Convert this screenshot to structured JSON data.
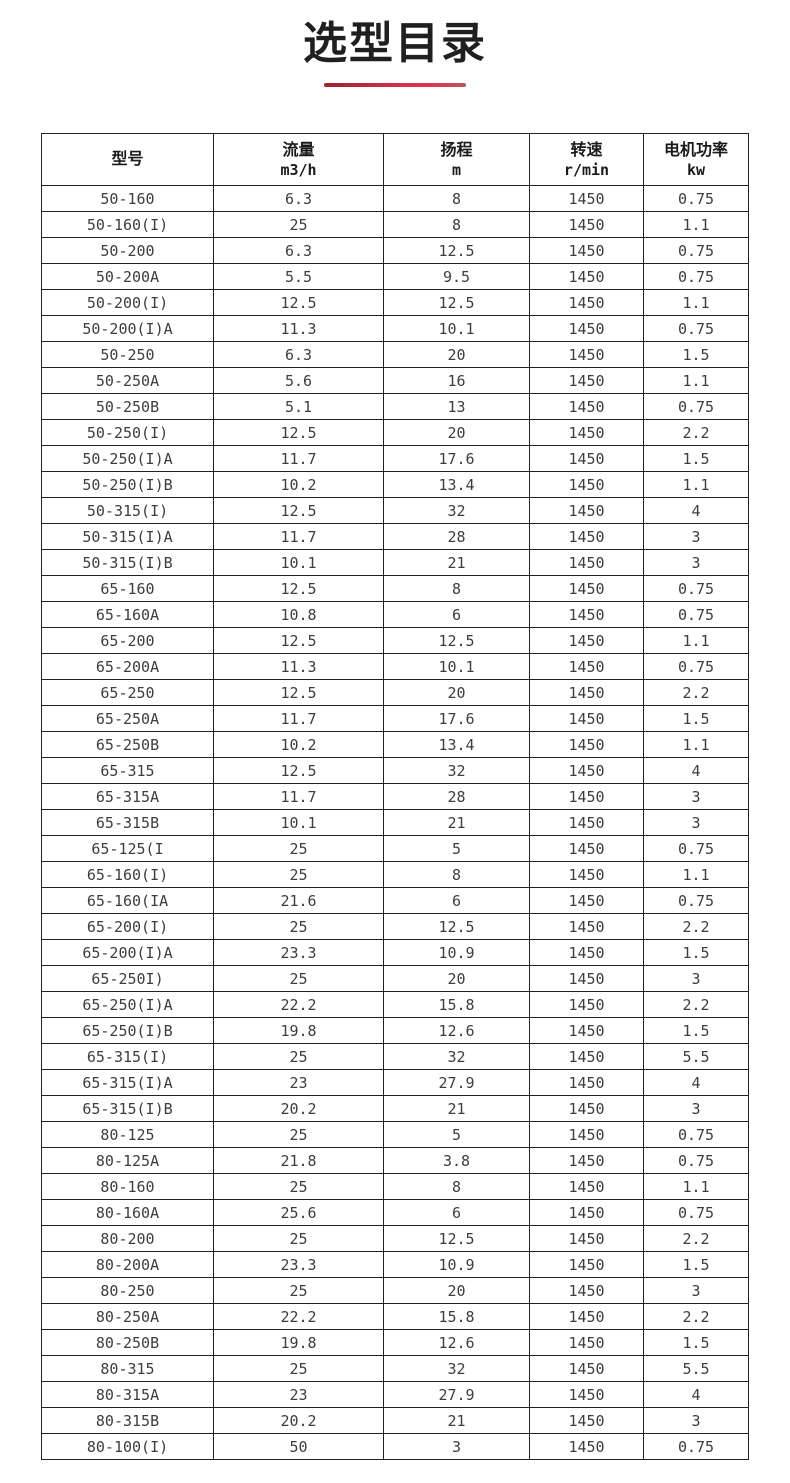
{
  "page": {
    "title": "选型目录",
    "accent_color": "#d8314a"
  },
  "table": {
    "columns": [
      {
        "label": "型号",
        "unit": ""
      },
      {
        "label": "流量",
        "unit": "m3/h"
      },
      {
        "label": "扬程",
        "unit": "m"
      },
      {
        "label": "转速",
        "unit": "r/min"
      },
      {
        "label": "电机功率",
        "unit": "kw"
      }
    ],
    "rows": [
      [
        "50-160",
        "6.3",
        "8",
        "1450",
        "0.75"
      ],
      [
        "50-160(I)",
        "25",
        "8",
        "1450",
        "1.1"
      ],
      [
        "50-200",
        "6.3",
        "12.5",
        "1450",
        "0.75"
      ],
      [
        "50-200A",
        "5.5",
        "9.5",
        "1450",
        "0.75"
      ],
      [
        "50-200(I)",
        "12.5",
        "12.5",
        "1450",
        "1.1"
      ],
      [
        "50-200(I)A",
        "11.3",
        "10.1",
        "1450",
        "0.75"
      ],
      [
        "50-250",
        "6.3",
        "20",
        "1450",
        "1.5"
      ],
      [
        "50-250A",
        "5.6",
        "16",
        "1450",
        "1.1"
      ],
      [
        "50-250B",
        "5.1",
        "13",
        "1450",
        "0.75"
      ],
      [
        "50-250(I)",
        "12.5",
        "20",
        "1450",
        "2.2"
      ],
      [
        "50-250(I)A",
        "11.7",
        "17.6",
        "1450",
        "1.5"
      ],
      [
        "50-250(I)B",
        "10.2",
        "13.4",
        "1450",
        "1.1"
      ],
      [
        "50-315(I)",
        "12.5",
        "32",
        "1450",
        "4"
      ],
      [
        "50-315(I)A",
        "11.7",
        "28",
        "1450",
        "3"
      ],
      [
        "50-315(I)B",
        "10.1",
        "21",
        "1450",
        "3"
      ],
      [
        "65-160",
        "12.5",
        "8",
        "1450",
        "0.75"
      ],
      [
        "65-160A",
        "10.8",
        "6",
        "1450",
        "0.75"
      ],
      [
        "65-200",
        "12.5",
        "12.5",
        "1450",
        "1.1"
      ],
      [
        "65-200A",
        "11.3",
        "10.1",
        "1450",
        "0.75"
      ],
      [
        "65-250",
        "12.5",
        "20",
        "1450",
        "2.2"
      ],
      [
        "65-250A",
        "11.7",
        "17.6",
        "1450",
        "1.5"
      ],
      [
        "65-250B",
        "10.2",
        "13.4",
        "1450",
        "1.1"
      ],
      [
        "65-315",
        "12.5",
        "32",
        "1450",
        "4"
      ],
      [
        "65-315A",
        "11.7",
        "28",
        "1450",
        "3"
      ],
      [
        "65-315B",
        "10.1",
        "21",
        "1450",
        "3"
      ],
      [
        "65-125(I",
        "25",
        "5",
        "1450",
        "0.75"
      ],
      [
        "65-160(I)",
        "25",
        "8",
        "1450",
        "1.1"
      ],
      [
        "65-160(IA",
        "21.6",
        "6",
        "1450",
        "0.75"
      ],
      [
        "65-200(I)",
        "25",
        "12.5",
        "1450",
        "2.2"
      ],
      [
        "65-200(I)A",
        "23.3",
        "10.9",
        "1450",
        "1.5"
      ],
      [
        "65-250I)",
        "25",
        "20",
        "1450",
        "3"
      ],
      [
        "65-250(I)A",
        "22.2",
        "15.8",
        "1450",
        "2.2"
      ],
      [
        "65-250(I)B",
        "19.8",
        "12.6",
        "1450",
        "1.5"
      ],
      [
        "65-315(I)",
        "25",
        "32",
        "1450",
        "5.5"
      ],
      [
        "65-315(I)A",
        "23",
        "27.9",
        "1450",
        "4"
      ],
      [
        "65-315(I)B",
        "20.2",
        "21",
        "1450",
        "3"
      ],
      [
        "80-125",
        "25",
        "5",
        "1450",
        "0.75"
      ],
      [
        "80-125A",
        "21.8",
        "3.8",
        "1450",
        "0.75"
      ],
      [
        "80-160",
        "25",
        "8",
        "1450",
        "1.1"
      ],
      [
        "80-160A",
        "25.6",
        "6",
        "1450",
        "0.75"
      ],
      [
        "80-200",
        "25",
        "12.5",
        "1450",
        "2.2"
      ],
      [
        "80-200A",
        "23.3",
        "10.9",
        "1450",
        "1.5"
      ],
      [
        "80-250",
        "25",
        "20",
        "1450",
        "3"
      ],
      [
        "80-250A",
        "22.2",
        "15.8",
        "1450",
        "2.2"
      ],
      [
        "80-250B",
        "19.8",
        "12.6",
        "1450",
        "1.5"
      ],
      [
        "80-315",
        "25",
        "32",
        "1450",
        "5.5"
      ],
      [
        "80-315A",
        "23",
        "27.9",
        "1450",
        "4"
      ],
      [
        "80-315B",
        "20.2",
        "21",
        "1450",
        "3"
      ],
      [
        "80-100(I)",
        "50",
        "3",
        "1450",
        "0.75"
      ]
    ]
  }
}
